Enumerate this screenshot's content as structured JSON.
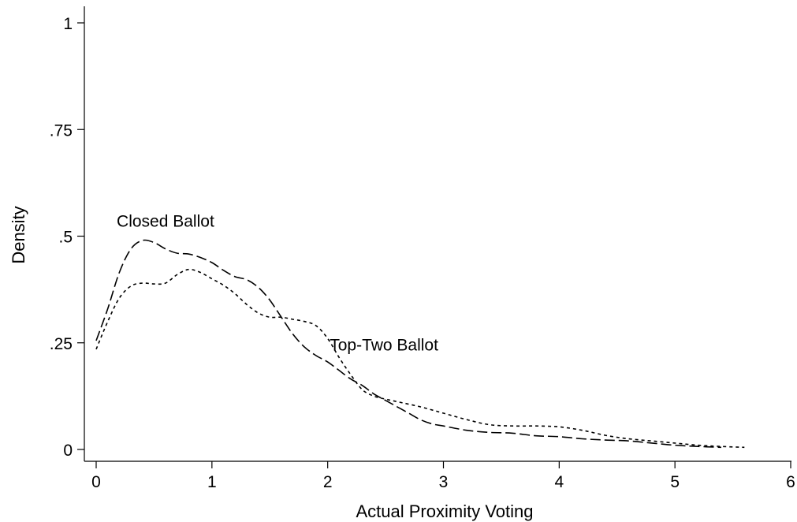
{
  "chart_data": {
    "type": "line",
    "title": "",
    "xlabel": "Actual Proximity Voting",
    "ylabel": "Density",
    "xlim": [
      0,
      6
    ],
    "ylim": [
      0,
      1
    ],
    "xticks": [
      0,
      1,
      2,
      3,
      4,
      5,
      6
    ],
    "yticks": [
      0,
      0.25,
      0.5,
      0.75,
      1
    ],
    "xtick_labels": [
      "0",
      "1",
      "2",
      "3",
      "4",
      "5",
      "6"
    ],
    "ytick_labels": [
      "0",
      ".25",
      ".5",
      ".75",
      "1"
    ],
    "grid": false,
    "legend": "none",
    "series": [
      {
        "name": "Closed Ballot",
        "style": "dashed",
        "color": "#000000",
        "x": [
          0,
          0.1,
          0.2,
          0.3,
          0.4,
          0.5,
          0.6,
          0.7,
          0.8,
          0.9,
          1.0,
          1.1,
          1.2,
          1.3,
          1.4,
          1.5,
          1.6,
          1.7,
          1.8,
          1.9,
          2.0,
          2.1,
          2.2,
          2.3,
          2.4,
          2.5,
          2.6,
          2.7,
          2.8,
          2.9,
          3.0,
          3.2,
          3.4,
          3.6,
          3.8,
          4.0,
          4.2,
          4.4,
          4.6,
          4.8,
          5.0,
          5.2,
          5.4
        ],
        "y": [
          0.255,
          0.33,
          0.415,
          0.47,
          0.49,
          0.485,
          0.47,
          0.46,
          0.458,
          0.45,
          0.438,
          0.42,
          0.405,
          0.398,
          0.38,
          0.35,
          0.31,
          0.27,
          0.24,
          0.22,
          0.205,
          0.185,
          0.165,
          0.15,
          0.13,
          0.115,
          0.1,
          0.085,
          0.07,
          0.06,
          0.055,
          0.045,
          0.04,
          0.038,
          0.032,
          0.03,
          0.025,
          0.022,
          0.02,
          0.015,
          0.01,
          0.007,
          0.005
        ]
      },
      {
        "name": "Top-Two Ballot",
        "style": "dotted",
        "color": "#000000",
        "x": [
          0,
          0.1,
          0.2,
          0.3,
          0.4,
          0.5,
          0.6,
          0.7,
          0.8,
          0.9,
          1.0,
          1.1,
          1.2,
          1.3,
          1.4,
          1.5,
          1.6,
          1.7,
          1.8,
          1.9,
          2.0,
          2.1,
          2.2,
          2.3,
          2.4,
          2.5,
          2.6,
          2.8,
          3.0,
          3.2,
          3.4,
          3.6,
          3.8,
          4.0,
          4.2,
          4.4,
          4.6,
          4.8,
          5.0,
          5.2,
          5.4,
          5.6
        ],
        "y": [
          0.235,
          0.3,
          0.355,
          0.383,
          0.39,
          0.388,
          0.39,
          0.41,
          0.422,
          0.415,
          0.4,
          0.385,
          0.365,
          0.34,
          0.32,
          0.31,
          0.31,
          0.305,
          0.3,
          0.29,
          0.26,
          0.215,
          0.175,
          0.14,
          0.125,
          0.118,
          0.112,
          0.1,
          0.085,
          0.07,
          0.058,
          0.055,
          0.055,
          0.053,
          0.045,
          0.033,
          0.025,
          0.02,
          0.015,
          0.01,
          0.007,
          0.005
        ]
      }
    ],
    "annotations": [
      {
        "text": "Closed Ballot",
        "x": 0.3,
        "y": 0.535
      },
      {
        "text": "Top-Two Ballot",
        "x": 2.14,
        "y": 0.245
      }
    ]
  }
}
